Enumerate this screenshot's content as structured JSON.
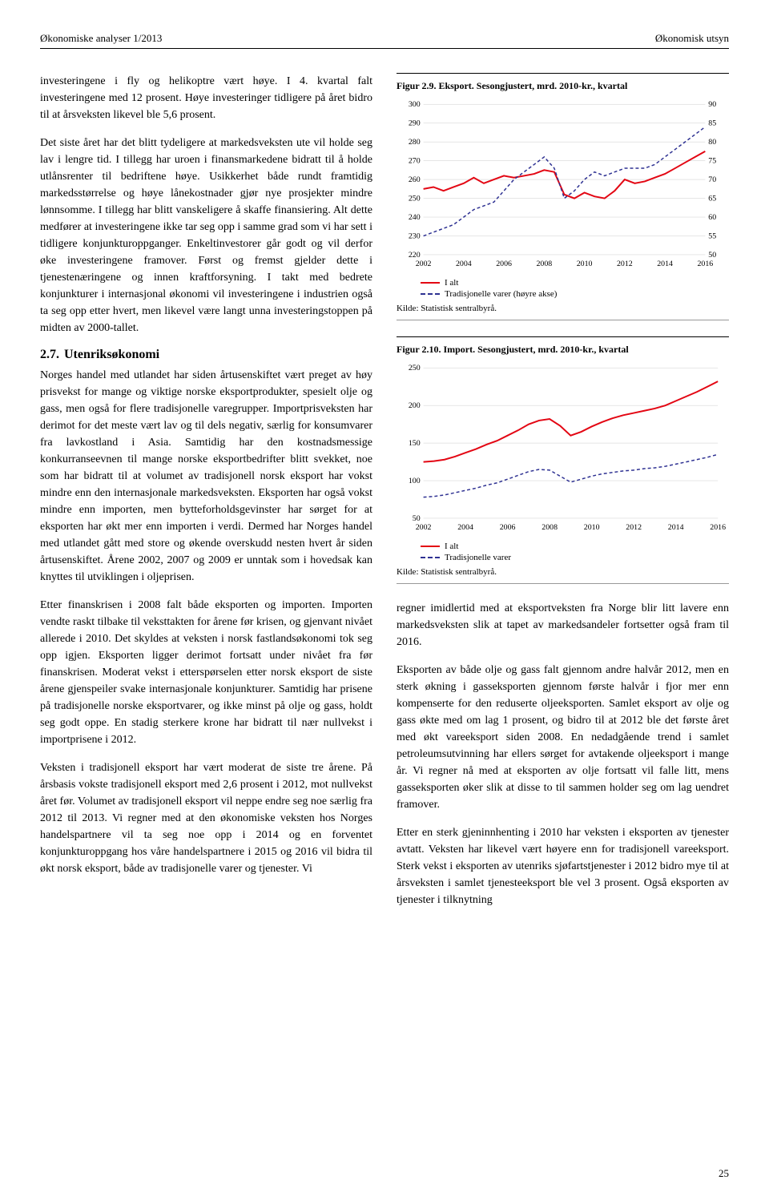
{
  "header": {
    "left": "Økonomiske analyser 1/2013",
    "right": "Økonomisk utsyn"
  },
  "left_paragraphs": [
    "investeringene i fly og helikoptre vært høye. I 4. kvartal falt investeringene med 12 prosent. Høye investeringer tidligere på året bidro til at årsveksten likevel ble 5,6 prosent.",
    "Det siste året har det blitt tydeligere at markedsveksten ute vil holde seg lav i lengre tid. I tillegg har uroen i finansmarkedene bidratt til å holde utlånsrenter til bedriftene høye. Usikkerhet både rundt framtidig markedsstørrelse og høye lånekostnader gjør nye prosjekter mindre lønnsomme. I tillegg har blitt vanskeligere å skaffe finansiering. Alt dette medfører at investeringene ikke tar seg opp i samme grad som vi har sett i tidligere konjunkturoppganger. Enkeltinvestorer går godt og vil derfor øke investeringene framover. Først og fremst gjelder dette i tjenestenæringene og innen kraftforsyning. I takt med bedrete konjunkturer i internasjonal økonomi vil investeringene i industrien også ta seg opp etter hvert, men likevel være langt unna investeringstoppen på midten av 2000-tallet."
  ],
  "section_heading": {
    "num": "2.7.",
    "title": "Utenriksøkonomi"
  },
  "left_paragraphs2": [
    "Norges handel med utlandet har siden årtusenskiftet vært preget av høy prisvekst for mange og viktige norske eksportprodukter, spesielt olje og gass, men også for flere tradisjonelle varegrupper. Importprisveksten har derimot for det meste vært lav og til dels negativ, særlig for konsumvarer fra lavkostland i Asia. Samtidig har den kostnadsmessige konkurranseevnen til mange norske eksportbedrifter blitt svekket, noe som har bidratt til at volumet av tradisjonell norsk eksport har vokst mindre enn den internasjonale markedsveksten. Eksporten har også vokst mindre enn importen, men bytteforholdsgevinster har sørget for at eksporten har økt mer enn importen i verdi. Dermed har Norges handel med utlandet gått med store og økende overskudd nesten hvert år siden årtusenskiftet. Årene 2002, 2007 og 2009 er unntak som i hovedsak kan knyttes til utviklingen i oljeprisen.",
    "Etter finanskrisen i 2008 falt både eksporten og importen. Importen vendte raskt tilbake til veksttakten for årene før krisen, og gjenvant nivået allerede i 2010. Det skyldes at veksten i norsk fastlandsøkonomi tok seg opp igjen. Eksporten ligger derimot fortsatt under nivået fra før finanskrisen. Moderat vekst i etterspørselen etter norsk eksport de siste årene gjenspeiler svake internasjonale konjunkturer. Samtidig har prisene på tradisjonelle norske eksportvarer, og ikke minst på olje og gass, holdt seg godt oppe. En stadig sterkere krone har bidratt til nær nullvekst i importprisene i 2012.",
    "Veksten i tradisjonell eksport har vært moderat de siste tre årene. På årsbasis vokste tradisjonell eksport med 2,6 prosent i 2012, mot nullvekst året før. Volumet av tradisjonell eksport vil neppe endre seg noe særlig fra 2012 til 2013. Vi regner med at den økonomiske veksten hos Norges handelspartnere vil ta seg noe opp i 2014 og en forventet konjunkturoppgang hos våre handelspartnere i 2015 og 2016 vil bidra til økt norsk eksport, både av tradisjonelle varer og tjenester. Vi"
  ],
  "right_paragraphs": [
    "regner imidlertid med at eksportveksten fra Norge blir litt lavere enn markedsveksten slik at tapet av markedsandeler fortsetter også fram til 2016.",
    "Eksporten av både olje og gass falt gjennom andre halvår 2012, men en sterk økning i gasseksporten gjennom første halvår i fjor mer enn kompenserte for den reduserte oljeeksporten. Samlet eksport av olje og gass økte med om lag 1 prosent, og bidro til at 2012 ble det første året med økt vareeksport siden 2008. En nedadgående trend i samlet petroleumsutvinning har ellers sørget for avtakende oljeeksport i mange år. Vi regner nå med at eksporten av olje fortsatt vil falle litt, mens gasseksporten øker slik at disse to til sammen holder seg om lag uendret framover.",
    "Etter en sterk gjeninnhenting i 2010 har veksten i eksporten av tjenester avtatt. Veksten har likevel vært høyere enn for tradisjonell vareeksport. Sterk vekst i eksporten av utenriks sjøfartstjenester i 2012 bidro mye til at årsveksten i samlet tjenesteeksport ble vel 3 prosent. Også eksporten av tjenester i tilknytning"
  ],
  "figure29": {
    "title": "Figur 2.9. Eksport. Sesongjustert, mrd. 2010-kr., kvartal",
    "type": "line-dual-axis",
    "x_ticks": [
      2002,
      2004,
      2006,
      2008,
      2010,
      2012,
      2014,
      2016
    ],
    "y_left": {
      "min": 220,
      "max": 300,
      "step": 10
    },
    "y_right": {
      "min": 50,
      "max": 90,
      "step": 5
    },
    "series1": {
      "name": "I alt",
      "color": "#e30613",
      "width": 2,
      "dash": "none",
      "axis": "left",
      "points": [
        [
          2002,
          255
        ],
        [
          2002.5,
          256
        ],
        [
          2003,
          254
        ],
        [
          2003.5,
          256
        ],
        [
          2004,
          258
        ],
        [
          2004.5,
          261
        ],
        [
          2005,
          258
        ],
        [
          2005.5,
          260
        ],
        [
          2006,
          262
        ],
        [
          2006.5,
          261
        ],
        [
          2007,
          262
        ],
        [
          2007.5,
          263
        ],
        [
          2008,
          265
        ],
        [
          2008.5,
          264
        ],
        [
          2009,
          252
        ],
        [
          2009.5,
          250
        ],
        [
          2010,
          253
        ],
        [
          2010.5,
          251
        ],
        [
          2011,
          250
        ],
        [
          2011.5,
          254
        ],
        [
          2012,
          260
        ],
        [
          2012.5,
          258
        ],
        [
          2013,
          259
        ],
        [
          2013.5,
          261
        ],
        [
          2014,
          263
        ],
        [
          2014.5,
          266
        ],
        [
          2015,
          269
        ],
        [
          2015.5,
          272
        ],
        [
          2016,
          275
        ]
      ]
    },
    "series2": {
      "name": "Tradisjonelle varer (høyre akse)",
      "color": "#2e3192",
      "width": 1.5,
      "dash": "4 3",
      "axis": "right",
      "points": [
        [
          2002,
          55
        ],
        [
          2002.5,
          56
        ],
        [
          2003,
          57
        ],
        [
          2003.5,
          58
        ],
        [
          2004,
          60
        ],
        [
          2004.5,
          62
        ],
        [
          2005,
          63
        ],
        [
          2005.5,
          64
        ],
        [
          2006,
          67
        ],
        [
          2006.5,
          70
        ],
        [
          2007,
          72
        ],
        [
          2007.5,
          74
        ],
        [
          2008,
          76
        ],
        [
          2008.5,
          73
        ],
        [
          2009,
          65
        ],
        [
          2009.5,
          67
        ],
        [
          2010,
          70
        ],
        [
          2010.5,
          72
        ],
        [
          2011,
          71
        ],
        [
          2011.5,
          72
        ],
        [
          2012,
          73
        ],
        [
          2012.5,
          73
        ],
        [
          2013,
          73
        ],
        [
          2013.5,
          74
        ],
        [
          2014,
          76
        ],
        [
          2014.5,
          78
        ],
        [
          2015,
          80
        ],
        [
          2015.5,
          82
        ],
        [
          2016,
          84
        ]
      ]
    },
    "legend": [
      {
        "label": "I alt",
        "color": "#e30613",
        "dash": false
      },
      {
        "label": "Tradisjonelle varer (høyre akse)",
        "color": "#2e3192",
        "dash": true
      }
    ],
    "source": "Kilde: Statistisk sentralbyrå.",
    "background_color": "#ffffff",
    "grid_color": "#cccccc",
    "label_fontsize": 10
  },
  "figure210": {
    "title": "Figur 2.10. Import. Sesongjustert, mrd. 2010-kr., kvartal",
    "type": "line",
    "x_ticks": [
      2002,
      2004,
      2006,
      2008,
      2010,
      2012,
      2014,
      2016
    ],
    "y_left": {
      "min": 50,
      "max": 250,
      "step": 50
    },
    "series1": {
      "name": "I alt",
      "color": "#e30613",
      "width": 2,
      "dash": "none",
      "points": [
        [
          2002,
          125
        ],
        [
          2002.5,
          126
        ],
        [
          2003,
          128
        ],
        [
          2003.5,
          132
        ],
        [
          2004,
          137
        ],
        [
          2004.5,
          142
        ],
        [
          2005,
          148
        ],
        [
          2005.5,
          153
        ],
        [
          2006,
          160
        ],
        [
          2006.5,
          167
        ],
        [
          2007,
          175
        ],
        [
          2007.5,
          180
        ],
        [
          2008,
          182
        ],
        [
          2008.5,
          173
        ],
        [
          2009,
          160
        ],
        [
          2009.5,
          165
        ],
        [
          2010,
          172
        ],
        [
          2010.5,
          178
        ],
        [
          2011,
          183
        ],
        [
          2011.5,
          187
        ],
        [
          2012,
          190
        ],
        [
          2012.5,
          193
        ],
        [
          2013,
          196
        ],
        [
          2013.5,
          200
        ],
        [
          2014,
          206
        ],
        [
          2014.5,
          212
        ],
        [
          2015,
          218
        ],
        [
          2015.5,
          225
        ],
        [
          2016,
          232
        ]
      ]
    },
    "series2": {
      "name": "Tradisjonelle varer",
      "color": "#2e3192",
      "width": 1.5,
      "dash": "4 3",
      "points": [
        [
          2002,
          78
        ],
        [
          2002.5,
          79
        ],
        [
          2003,
          81
        ],
        [
          2003.5,
          84
        ],
        [
          2004,
          87
        ],
        [
          2004.5,
          90
        ],
        [
          2005,
          94
        ],
        [
          2005.5,
          97
        ],
        [
          2006,
          102
        ],
        [
          2006.5,
          107
        ],
        [
          2007,
          112
        ],
        [
          2007.5,
          115
        ],
        [
          2008,
          114
        ],
        [
          2008.5,
          106
        ],
        [
          2009,
          98
        ],
        [
          2009.5,
          102
        ],
        [
          2010,
          106
        ],
        [
          2010.5,
          109
        ],
        [
          2011,
          111
        ],
        [
          2011.5,
          113
        ],
        [
          2012,
          114
        ],
        [
          2012.5,
          116
        ],
        [
          2013,
          117
        ],
        [
          2013.5,
          119
        ],
        [
          2014,
          122
        ],
        [
          2014.5,
          125
        ],
        [
          2015,
          128
        ],
        [
          2015.5,
          131
        ],
        [
          2016,
          135
        ]
      ]
    },
    "legend": [
      {
        "label": "I alt",
        "color": "#e30613",
        "dash": false
      },
      {
        "label": "Tradisjonelle varer",
        "color": "#2e3192",
        "dash": true
      }
    ],
    "source": "Kilde: Statistisk sentralbyrå.",
    "background_color": "#ffffff",
    "grid_color": "#cccccc",
    "label_fontsize": 10
  },
  "page_number": "25"
}
